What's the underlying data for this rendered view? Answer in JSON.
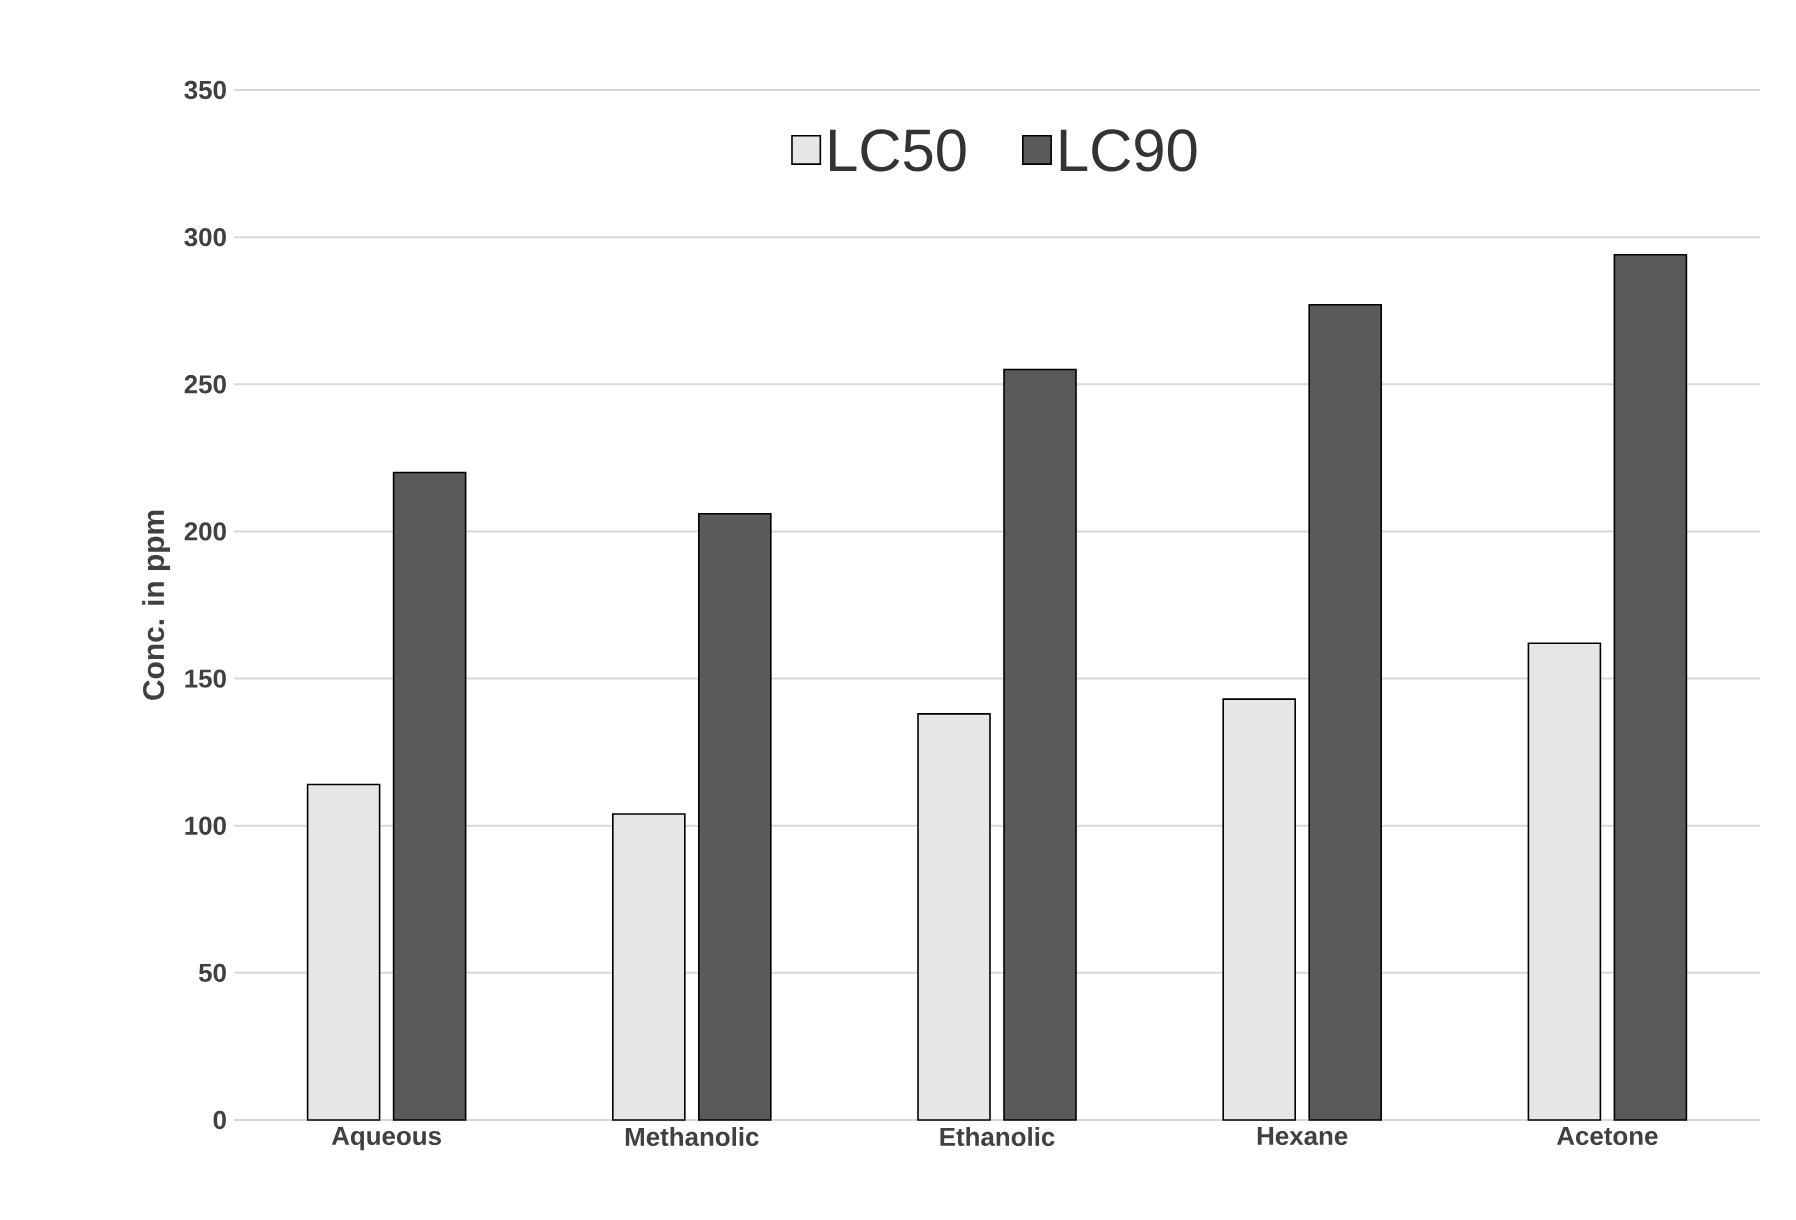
{
  "chart_data": {
    "type": "bar",
    "ylabel": "Conc. in ppm",
    "categories": [
      "Aqueous",
      "Methanolic",
      "Ethanolic",
      "Hexane",
      "Acetone"
    ],
    "series": [
      {
        "name": "LC50",
        "color": "#e6e6e6",
        "values": [
          114,
          104,
          138,
          143,
          162
        ]
      },
      {
        "name": "LC90",
        "color": "#5a5a5a",
        "values": [
          220,
          206,
          255,
          277,
          294
        ]
      }
    ],
    "ylim": [
      0,
      350
    ],
    "yticks": [
      0,
      50,
      100,
      150,
      200,
      250,
      300,
      350
    ],
    "grid": "y",
    "legend": "top"
  }
}
